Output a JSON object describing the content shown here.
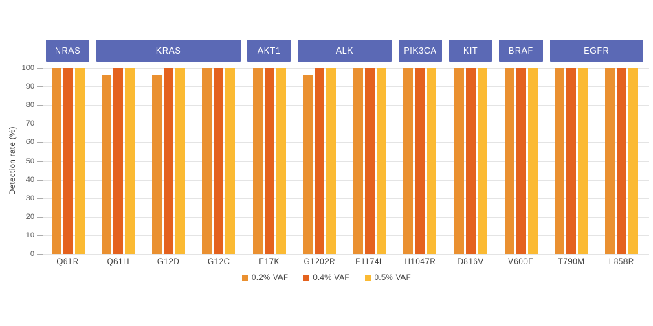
{
  "chart_data": {
    "type": "bar",
    "title": "",
    "ylabel": "Detection rate (%)",
    "xlabel": "",
    "ylim": [
      0,
      100
    ],
    "yticks": [
      0,
      10,
      20,
      30,
      40,
      50,
      60,
      70,
      80,
      90,
      100
    ],
    "grid": true,
    "legend_position": "bottom",
    "categories": [
      "Q61R",
      "Q61H",
      "G12D",
      "G12C",
      "E17K",
      "G1202R",
      "F1174L",
      "H1047R",
      "D816V",
      "V600E",
      "T790M",
      "L858R"
    ],
    "series": [
      {
        "name": "0.2% VAF",
        "color": "#EA9030",
        "values": [
          100,
          96,
          96,
          100,
          100,
          96,
          100,
          100,
          100,
          100,
          100,
          100
        ]
      },
      {
        "name": "0.4% VAF",
        "color": "#E4621E",
        "values": [
          100,
          100,
          100,
          100,
          100,
          100,
          100,
          100,
          100,
          100,
          100,
          100
        ]
      },
      {
        "name": "0.5% VAF",
        "color": "#FBBA33",
        "values": [
          100,
          100,
          100,
          100,
          100,
          100,
          100,
          100,
          100,
          100,
          100,
          100
        ]
      }
    ],
    "gene_groups": [
      {
        "label": "NRAS",
        "start": 0,
        "end": 0
      },
      {
        "label": "KRAS",
        "start": 1,
        "end": 3
      },
      {
        "label": "AKT1",
        "start": 4,
        "end": 4
      },
      {
        "label": "ALK",
        "start": 5,
        "end": 6
      },
      {
        "label": "PIK3CA",
        "start": 7,
        "end": 7
      },
      {
        "label": "KIT",
        "start": 8,
        "end": 8
      },
      {
        "label": "BRAF",
        "start": 9,
        "end": 9
      },
      {
        "label": "EGFR",
        "start": 10,
        "end": 11
      }
    ],
    "colors": {
      "gene_box": "#5B69B5",
      "gene_box_text": "#FFFFFF",
      "gridline": "#E4E4E4",
      "tick": "#ABABAB",
      "axis_text": "#595959",
      "label_text": "#3D3D3D"
    }
  }
}
